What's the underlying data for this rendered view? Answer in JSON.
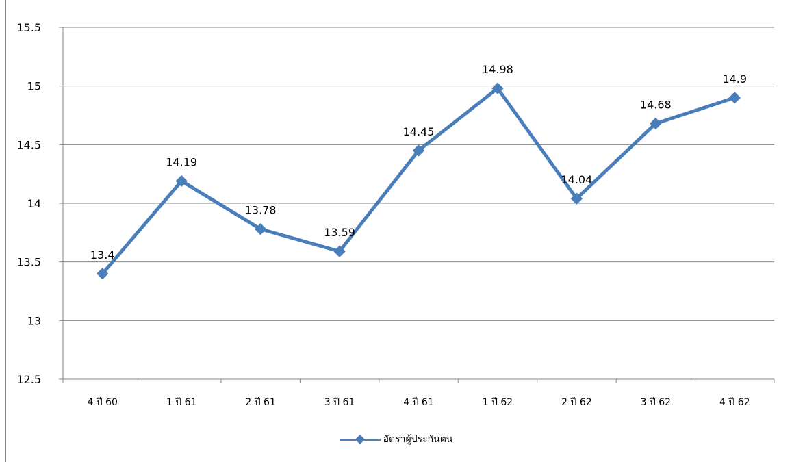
{
  "chart_data": {
    "type": "line",
    "title": "",
    "categories": [
      "4 ปี 60",
      "1 ปี 61",
      "2 ปี 61",
      "3 ปี 61",
      "4 ปี 61",
      "1 ปี 62",
      "2 ปี 62",
      "3 ปี 62",
      "4 ปี 62"
    ],
    "series": [
      {
        "name": "อัตราผู้ประกันตน",
        "values": [
          13.4,
          14.19,
          13.78,
          13.59,
          14.45,
          14.98,
          14.04,
          14.68,
          14.9
        ],
        "color": "#4a7ebb"
      }
    ],
    "data_labels": [
      "13.4",
      "14.19",
      "13.78",
      "13.59",
      "14.45",
      "14.98",
      "14.04",
      "14.68",
      "14.9"
    ],
    "y_ticks": [
      "12.5",
      "13",
      "13.5",
      "14",
      "14.5",
      "15",
      "15.5"
    ],
    "ylim": [
      12.5,
      15.5
    ],
    "xlabel": "",
    "ylabel": "",
    "grid": true,
    "legend_position": "bottom",
    "marker": "diamond"
  },
  "colors": {
    "line": "#4a7ebb",
    "grid": "#868686",
    "axis": "#868686"
  }
}
